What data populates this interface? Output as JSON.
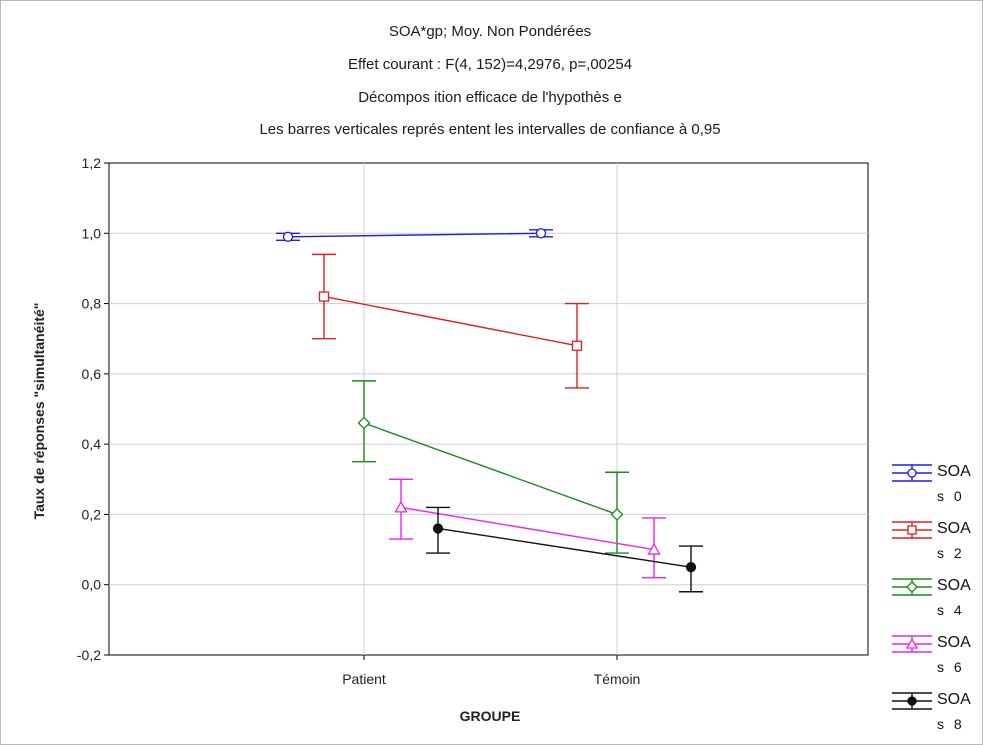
{
  "chart_data": {
    "type": "line",
    "title_lines": [
      "SOA*gp; Moy. Non Pondérées",
      "Effet courant : F(4, 152)=4,2976, p=,00254",
      "Décompos ition efficace de l'hypothès e",
      "Les barres verticales représ entent les intervalles de confiance à 0,95"
    ],
    "xlabel": "GROUPE",
    "ylabel": "Taux de réponses \"simultanéité\"",
    "categories": [
      "Patient",
      "Témoin"
    ],
    "ylim": [
      -0.2,
      1.2
    ],
    "yticks": [
      "-0,2",
      "0,0",
      "0,2",
      "0,4",
      "0,6",
      "0,8",
      "1,0",
      "1,2"
    ],
    "grid": true,
    "legend_position": "right",
    "series": [
      {
        "name": "SOA",
        "sub": "s 0",
        "color": "#1f1fe0",
        "marker": "circle-open",
        "values": [
          0.99,
          1.0
        ],
        "ci_low": [
          0.98,
          0.99
        ],
        "ci_high": [
          1.0,
          1.01
        ]
      },
      {
        "name": "SOA",
        "sub": "s 2",
        "color": "#e02020",
        "marker": "square-open",
        "values": [
          0.82,
          0.68
        ],
        "ci_low": [
          0.7,
          0.56
        ],
        "ci_high": [
          0.94,
          0.8
        ]
      },
      {
        "name": "SOA",
        "sub": "s 4",
        "color": "#1a8a1a",
        "marker": "diamond-open",
        "values": [
          0.46,
          0.2
        ],
        "ci_low": [
          0.35,
          0.09
        ],
        "ci_high": [
          0.58,
          0.32
        ]
      },
      {
        "name": "SOA",
        "sub": "s 6",
        "color": "#ee22ee",
        "marker": "triangle-open",
        "values": [
          0.22,
          0.1
        ],
        "ci_low": [
          0.13,
          0.02
        ],
        "ci_high": [
          0.3,
          0.19
        ]
      },
      {
        "name": "SOA",
        "sub": "s 8",
        "color": "#111111",
        "marker": "circle-filled",
        "values": [
          0.16,
          0.05
        ],
        "ci_low": [
          0.09,
          -0.02
        ],
        "ci_high": [
          0.22,
          0.11
        ]
      }
    ]
  }
}
